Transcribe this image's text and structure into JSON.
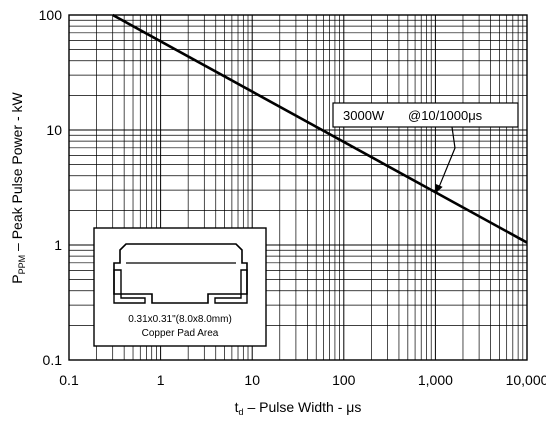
{
  "chart_data": {
    "type": "line",
    "xlabel": {
      "main": "t",
      "sub": "d",
      "rest": " – Pulse Width  - μs"
    },
    "ylabel": {
      "main": "P",
      "sub": "PPM",
      "rest": " – Peak Pulse Power - kW"
    },
    "xscale": "log",
    "yscale": "log",
    "xlim": [
      0.1,
      10000
    ],
    "ylim": [
      0.1,
      100
    ],
    "grid": true,
    "x_ticks": [
      {
        "value": 0.1,
        "label": "0.1"
      },
      {
        "value": 1,
        "label": "1"
      },
      {
        "value": 10,
        "label": "10"
      },
      {
        "value": 100,
        "label": "100"
      },
      {
        "value": 1000,
        "label": "1,000"
      },
      {
        "value": 10000,
        "label": "10,000"
      }
    ],
    "y_ticks": [
      {
        "value": 0.1,
        "label": "0.1"
      },
      {
        "value": 1,
        "label": "1"
      },
      {
        "value": 10,
        "label": "10"
      },
      {
        "value": 100,
        "label": "100"
      }
    ],
    "series": [
      {
        "x": [
          0.3,
          10000
        ],
        "y": [
          100,
          1.05
        ]
      }
    ],
    "annotations": [
      {
        "text_1": "3000W",
        "text_2": "@10/1000μs",
        "arrow_to": {
          "x": 1000,
          "y": 2.8
        }
      }
    ],
    "inset": {
      "line1": "0.31x0.31\"(8.0x8.0mm)",
      "line2": "Copper Pad Area"
    }
  }
}
